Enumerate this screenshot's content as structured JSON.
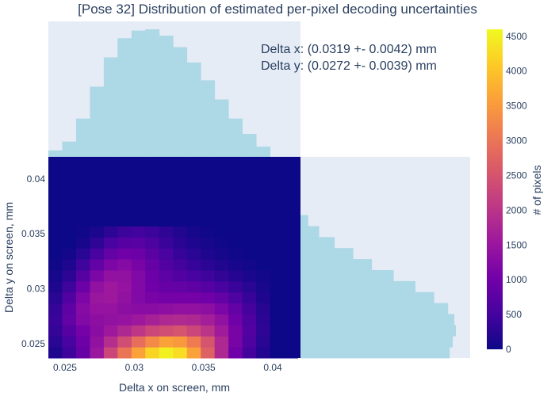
{
  "chart_data": {
    "type": "heatmap",
    "title": "[Pose 32] Distribution of estimated per-pixel decoding uncertainties",
    "xlabel": "Delta x on screen, mm",
    "ylabel": "Delta y on screen, mm",
    "xlim": [
      0.0238,
      0.042
    ],
    "ylim": [
      0.0237,
      0.042
    ],
    "x_ticks": [
      {
        "value": 0.025,
        "label": "0.025"
      },
      {
        "value": 0.03,
        "label": "0.03"
      },
      {
        "value": 0.035,
        "label": "0.035"
      },
      {
        "value": 0.04,
        "label": "0.04"
      }
    ],
    "y_ticks": [
      {
        "value": 0.025,
        "label": "0.025"
      },
      {
        "value": 0.03,
        "label": "0.03"
      },
      {
        "value": 0.035,
        "label": "0.035"
      },
      {
        "value": 0.04,
        "label": "0.04"
      }
    ],
    "annotations": [
      "Delta x: (0.0319 +- 0.0042) mm",
      "Delta y: (0.0272 +- 0.0039) mm"
    ],
    "colorbar": {
      "title": "# of pixels",
      "range": [
        0,
        4600
      ],
      "ticks": [
        {
          "value": 0,
          "label": "0"
        },
        {
          "value": 500,
          "label": "500"
        },
        {
          "value": 1000,
          "label": "1000"
        },
        {
          "value": 1500,
          "label": "1500"
        },
        {
          "value": 2000,
          "label": "2000"
        },
        {
          "value": 2500,
          "label": "2500"
        },
        {
          "value": 3000,
          "label": "3000"
        },
        {
          "value": 3500,
          "label": "3500"
        },
        {
          "value": 4000,
          "label": "4000"
        },
        {
          "value": 4500,
          "label": "4500"
        }
      ],
      "colors": [
        "#0d0887",
        "#46039f",
        "#7201a8",
        "#9c179e",
        "#bd3786",
        "#d8576b",
        "#ed7953",
        "#fb9f3a",
        "#fdca26",
        "#f0f921"
      ]
    },
    "heatmap": {
      "x_centers": [
        0.0243,
        0.0253,
        0.0263,
        0.0273,
        0.0283,
        0.0293,
        0.0303,
        0.0313,
        0.0323,
        0.0333,
        0.0343,
        0.0353,
        0.0363,
        0.0373,
        0.0383,
        0.0393,
        0.0403,
        0.0413
      ],
      "y_centers": [
        0.0242,
        0.0252,
        0.0262,
        0.0272,
        0.0282,
        0.0292,
        0.0302,
        0.0312,
        0.0322,
        0.0332,
        0.0342,
        0.0352,
        0.0362,
        0.0372,
        0.0382,
        0.0392,
        0.0402,
        0.0412
      ],
      "z": [
        [
          150,
          450,
          900,
          1500,
          2300,
          3000,
          3600,
          4200,
          4500,
          4300,
          3600,
          2700,
          1800,
          1000,
          500,
          200,
          0,
          0
        ],
        [
          250,
          550,
          950,
          1400,
          1900,
          2400,
          2900,
          3300,
          3600,
          3500,
          3100,
          2500,
          1800,
          1100,
          600,
          250,
          0,
          0
        ],
        [
          350,
          700,
          1050,
          1300,
          1550,
          1800,
          2050,
          2300,
          2400,
          2500,
          2300,
          2000,
          1600,
          1100,
          650,
          300,
          0,
          0
        ],
        [
          400,
          850,
          1200,
          1350,
          1400,
          1450,
          1550,
          1700,
          1800,
          1850,
          1800,
          1650,
          1400,
          1000,
          600,
          280,
          0,
          0
        ],
        [
          350,
          800,
          1250,
          1450,
          1450,
          1350,
          1300,
          1300,
          1350,
          1400,
          1400,
          1350,
          1150,
          850,
          500,
          230,
          0,
          0
        ],
        [
          250,
          650,
          1150,
          1500,
          1550,
          1400,
          1200,
          1100,
          1050,
          1050,
          1050,
          1000,
          850,
          620,
          380,
          170,
          0,
          0
        ],
        [
          150,
          450,
          950,
          1400,
          1550,
          1450,
          1200,
          1000,
          900,
          850,
          800,
          700,
          550,
          400,
          250,
          110,
          0,
          0
        ],
        [
          80,
          280,
          700,
          1150,
          1400,
          1400,
          1200,
          950,
          780,
          650,
          550,
          450,
          330,
          220,
          130,
          50,
          0,
          0
        ],
        [
          30,
          150,
          450,
          850,
          1150,
          1250,
          1100,
          880,
          650,
          500,
          380,
          270,
          180,
          100,
          50,
          0,
          0,
          0
        ],
        [
          0,
          60,
          250,
          550,
          850,
          1000,
          950,
          750,
          550,
          380,
          250,
          160,
          90,
          40,
          0,
          0,
          0,
          0
        ],
        [
          0,
          0,
          100,
          300,
          550,
          700,
          720,
          580,
          400,
          260,
          150,
          80,
          40,
          0,
          0,
          0,
          0,
          0
        ],
        [
          0,
          0,
          30,
          120,
          280,
          420,
          480,
          420,
          300,
          180,
          90,
          40,
          0,
          0,
          0,
          0,
          0,
          0
        ],
        [
          0,
          0,
          0,
          0,
          0,
          0,
          0,
          0,
          0,
          0,
          0,
          0,
          0,
          0,
          0,
          0,
          0,
          0
        ],
        [
          0,
          0,
          0,
          0,
          0,
          0,
          0,
          0,
          0,
          0,
          0,
          0,
          0,
          0,
          0,
          0,
          0,
          0
        ],
        [
          0,
          0,
          0,
          0,
          0,
          0,
          0,
          0,
          0,
          0,
          0,
          0,
          0,
          0,
          0,
          0,
          0,
          0
        ],
        [
          0,
          0,
          0,
          0,
          0,
          0,
          0,
          0,
          0,
          0,
          0,
          0,
          0,
          0,
          0,
          0,
          0,
          0
        ],
        [
          0,
          0,
          0,
          0,
          0,
          0,
          0,
          0,
          0,
          0,
          0,
          0,
          0,
          0,
          0,
          0,
          0,
          0
        ],
        [
          0,
          0,
          0,
          0,
          0,
          0,
          0,
          0,
          0,
          0,
          0,
          0,
          0,
          0,
          0,
          0,
          0,
          0
        ]
      ]
    },
    "marginal_x": {
      "color": "#add8e6",
      "background": "#e5ecf6",
      "x": [
        0.0243,
        0.0253,
        0.0263,
        0.0273,
        0.0283,
        0.0293,
        0.0303,
        0.0313,
        0.0323,
        0.0333,
        0.0343,
        0.0353,
        0.0363,
        0.0373,
        0.0383,
        0.0393,
        0.0403,
        0.0413
      ],
      "values": [
        0.05,
        0.12,
        0.3,
        0.55,
        0.78,
        0.93,
        0.99,
        1.0,
        0.95,
        0.86,
        0.74,
        0.6,
        0.45,
        0.3,
        0.18,
        0.08,
        0.0,
        0.0
      ]
    },
    "marginal_y": {
      "color": "#add8e6",
      "background": "#e5ecf6",
      "y": [
        0.0242,
        0.0252,
        0.0262,
        0.0272,
        0.0282,
        0.0292,
        0.0302,
        0.0312,
        0.0322,
        0.0332,
        0.0342,
        0.0352,
        0.0362,
        0.0372,
        0.0382,
        0.0392,
        0.0402,
        0.0412
      ],
      "values": [
        0.96,
        0.98,
        1.0,
        0.99,
        0.95,
        0.86,
        0.74,
        0.6,
        0.46,
        0.34,
        0.22,
        0.12,
        0.05,
        0.0,
        0.0,
        0.0,
        0.0,
        0.0
      ]
    }
  }
}
